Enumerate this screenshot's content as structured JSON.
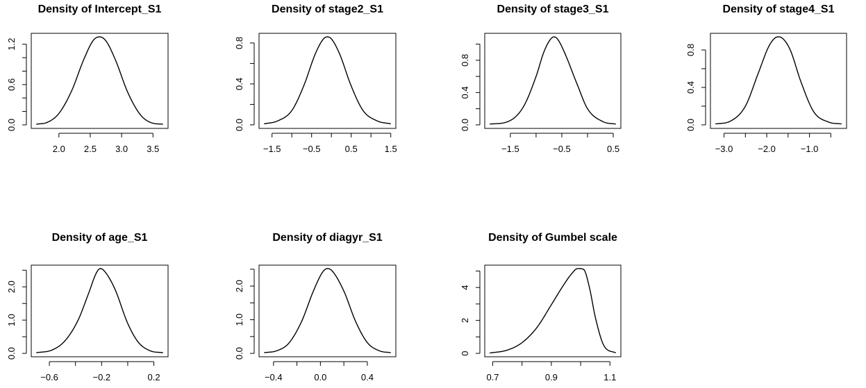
{
  "chart_data": [
    {
      "type": "line",
      "title": "Density of Intercept_S1",
      "x": [
        1.64,
        1.82,
        2.0,
        2.2,
        2.4,
        2.55,
        2.65,
        2.75,
        2.9,
        3.1,
        3.3,
        3.48,
        3.66
      ],
      "y": [
        0.01,
        0.04,
        0.17,
        0.5,
        0.98,
        1.26,
        1.31,
        1.25,
        0.97,
        0.48,
        0.15,
        0.03,
        0.01
      ],
      "xlim": [
        1.64,
        3.66
      ],
      "ylim": [
        0.0,
        1.31
      ],
      "xticks": [
        2.0,
        2.5,
        3.0,
        3.5
      ],
      "xtick_labels": [
        "2.0",
        "2.5",
        "3.0",
        "3.5"
      ],
      "yticks": [
        0.0,
        0.6,
        1.2
      ],
      "ytick_labels": [
        "0.0",
        "0.6",
        "1.2"
      ],
      "ytick_minor": [
        0.2,
        0.4,
        0.8,
        1.0
      ]
    },
    {
      "type": "line",
      "title": "Density of stage2_S1",
      "x": [
        -1.7,
        -1.35,
        -1.0,
        -0.7,
        -0.4,
        -0.2,
        -0.1,
        0.0,
        0.2,
        0.5,
        0.8,
        1.15,
        1.5
      ],
      "y": [
        0.01,
        0.04,
        0.14,
        0.38,
        0.7,
        0.84,
        0.86,
        0.84,
        0.7,
        0.38,
        0.14,
        0.04,
        0.01
      ],
      "xlim": [
        -1.7,
        1.5
      ],
      "ylim": [
        0.0,
        0.86
      ],
      "xticks": [
        -1.5,
        -0.5,
        0.5,
        1.5
      ],
      "xtick_labels": [
        "−1.5",
        "−0.5",
        "0.5",
        "1.5"
      ],
      "xtick_minor": [
        -1.0,
        0.0,
        1.0
      ],
      "yticks": [
        0.0,
        0.4,
        0.8
      ],
      "ytick_labels": [
        "0.0",
        "0.4",
        "0.8"
      ],
      "ytick_minor": [
        0.2,
        0.6
      ]
    },
    {
      "type": "line",
      "title": "Density of stage3_S1",
      "x": [
        -1.9,
        -1.55,
        -1.25,
        -1.0,
        -0.85,
        -0.72,
        -0.65,
        -0.58,
        -0.45,
        -0.2,
        0.0,
        0.3,
        0.55
      ],
      "y": [
        0.01,
        0.04,
        0.22,
        0.6,
        0.9,
        1.06,
        1.09,
        1.06,
        0.9,
        0.5,
        0.2,
        0.04,
        0.01
      ],
      "xlim": [
        -1.9,
        0.55
      ],
      "ylim": [
        0.0,
        1.09
      ],
      "xticks": [
        -1.5,
        -0.5,
        0.5
      ],
      "xtick_labels": [
        "−1.5",
        "−0.5",
        "0.5"
      ],
      "xtick_minor": [
        -1.0,
        0.0
      ],
      "yticks": [
        0.0,
        0.4,
        0.8
      ],
      "ytick_labels": [
        "0.0",
        "0.4",
        "0.8"
      ],
      "ytick_minor": [
        0.2,
        0.6,
        1.0
      ]
    },
    {
      "type": "line",
      "title": "Density of stage4_S1",
      "x": [
        -3.2,
        -2.85,
        -2.5,
        -2.2,
        -1.95,
        -1.8,
        -1.72,
        -1.62,
        -1.45,
        -1.2,
        -0.9,
        -0.55,
        -0.25
      ],
      "y": [
        0.01,
        0.04,
        0.2,
        0.55,
        0.84,
        0.93,
        0.94,
        0.92,
        0.8,
        0.46,
        0.14,
        0.03,
        0.01
      ],
      "xlim": [
        -3.2,
        -0.25
      ],
      "ylim": [
        0.0,
        0.94
      ],
      "xticks": [
        -3.0,
        -2.0,
        -1.0
      ],
      "xtick_labels": [
        "−3.0",
        "−2.0",
        "−1.0"
      ],
      "xtick_minor": [
        -2.5,
        -1.5,
        -0.5
      ],
      "yticks": [
        0.0,
        0.4,
        0.8
      ],
      "ytick_labels": [
        "0.0",
        "0.4",
        "0.8"
      ],
      "ytick_minor": [
        0.2,
        0.6
      ]
    },
    {
      "type": "line",
      "title": "Density of age_S1",
      "x": [
        -0.7,
        -0.58,
        -0.48,
        -0.38,
        -0.3,
        -0.24,
        -0.21,
        -0.18,
        -0.1,
        0.0,
        0.08,
        0.17,
        0.27
      ],
      "y": [
        0.02,
        0.1,
        0.38,
        1.0,
        1.8,
        2.42,
        2.55,
        2.48,
        1.95,
        0.9,
        0.34,
        0.08,
        0.02
      ],
      "xlim": [
        -0.7,
        0.27
      ],
      "ylim": [
        0.0,
        2.55
      ],
      "xticks": [
        -0.6,
        -0.2,
        0.2
      ],
      "xtick_labels": [
        "−0.6",
        "−0.2",
        "0.2"
      ],
      "xtick_minor": [
        -0.4,
        0.0
      ],
      "yticks": [
        0.0,
        1.0,
        2.0
      ],
      "ytick_labels": [
        "0.0",
        "1.0",
        "2.0"
      ],
      "ytick_minor": [
        0.5,
        1.5,
        2.5
      ]
    },
    {
      "type": "line",
      "title": "Density of diagyr_S1",
      "x": [
        -0.48,
        -0.37,
        -0.27,
        -0.16,
        -0.06,
        0.02,
        0.06,
        0.1,
        0.2,
        0.3,
        0.4,
        0.5,
        0.6
      ],
      "y": [
        0.02,
        0.08,
        0.3,
        0.95,
        1.85,
        2.42,
        2.52,
        2.45,
        1.85,
        0.95,
        0.32,
        0.08,
        0.02
      ],
      "xlim": [
        -0.48,
        0.6
      ],
      "ylim": [
        0.0,
        2.52
      ],
      "xticks": [
        -0.4,
        0.0,
        0.4
      ],
      "xtick_labels": [
        "−0.4",
        "0.0",
        "0.4"
      ],
      "xtick_minor": [
        -0.2,
        0.2
      ],
      "yticks": [
        0.0,
        1.0,
        2.0
      ],
      "ytick_labels": [
        "0.0",
        "1.0",
        "2.0"
      ],
      "ytick_minor": [
        0.5,
        1.5,
        2.5
      ]
    },
    {
      "type": "line",
      "title": "Density of Gumbel scale",
      "x": [
        0.69,
        0.75,
        0.8,
        0.85,
        0.9,
        0.94,
        0.97,
        0.99,
        1.01,
        1.03,
        1.05,
        1.08,
        1.12
      ],
      "y": [
        0.02,
        0.2,
        0.65,
        1.55,
        2.95,
        4.1,
        4.85,
        5.15,
        5.1,
        4.0,
        2.2,
        0.45,
        0.03
      ],
      "xlim": [
        0.69,
        1.12
      ],
      "ylim": [
        0.0,
        5.15
      ],
      "xticks": [
        0.7,
        0.9,
        1.1
      ],
      "xtick_labels": [
        "0.7",
        "0.9",
        "1.1"
      ],
      "xtick_minor": [
        0.8,
        1.0
      ],
      "yticks": [
        0,
        2,
        4
      ],
      "ytick_labels": [
        "0",
        "2",
        "4"
      ],
      "ytick_minor": [
        1,
        3,
        5
      ]
    }
  ]
}
